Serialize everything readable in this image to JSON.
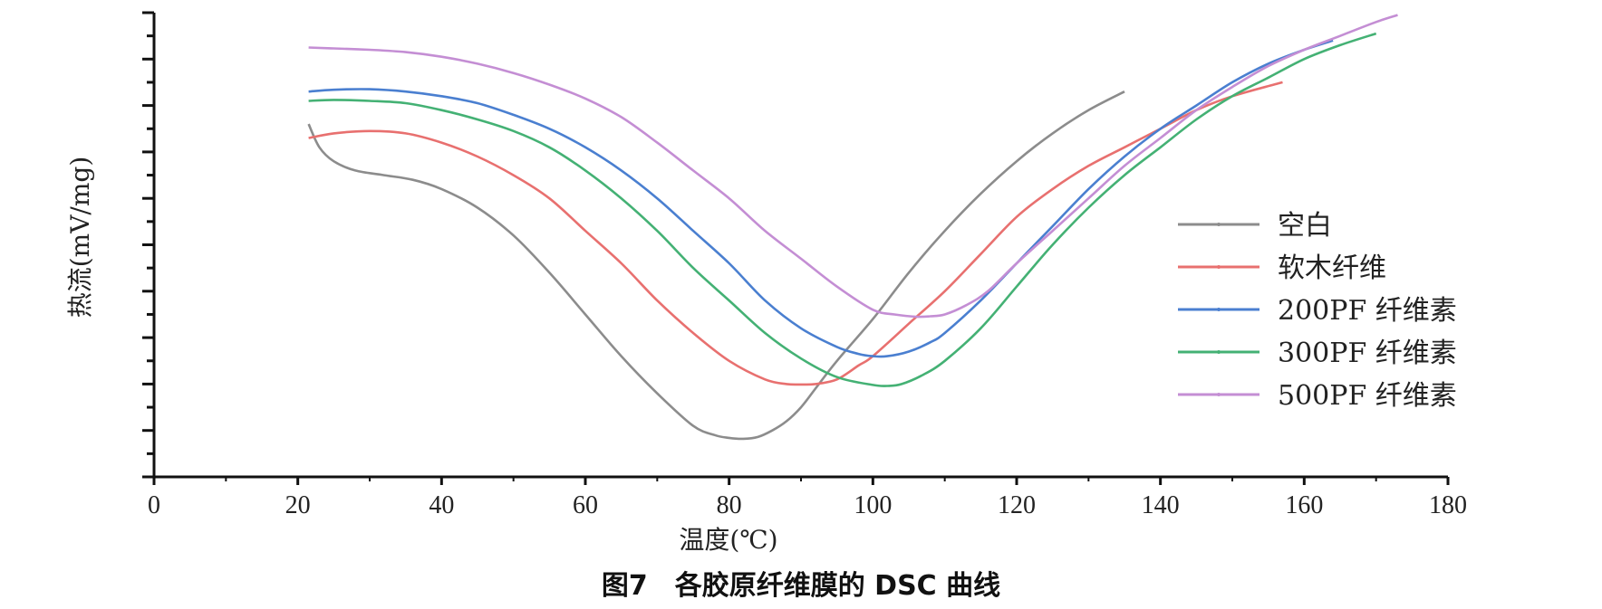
{
  "caption": "图7　各胶原纤维膜的 DSC 曲线",
  "chart_data": {
    "type": "line",
    "xlabel": "温度(℃)",
    "ylabel": "热流(mV/mg)",
    "xlim": [
      0,
      180
    ],
    "ylim": [
      0,
      100
    ],
    "xticks": [
      "0",
      "20",
      "40",
      "60",
      "80",
      "100",
      "120",
      "140",
      "160",
      "180"
    ],
    "y_tick_labels_shown": false,
    "grid": false,
    "legend_position": "right",
    "series": [
      {
        "name": "空白",
        "color": "#8c8c8c",
        "x": [
          21.5,
          23,
          25,
          28,
          32,
          36,
          40,
          45,
          50,
          55,
          60,
          65,
          70,
          75,
          78,
          80,
          82,
          84,
          86,
          88,
          90,
          92,
          95,
          100,
          105,
          110,
          115,
          120,
          125,
          130,
          135
        ],
        "y": [
          76,
          71,
          68,
          66,
          65,
          64,
          62,
          58,
          52,
          44,
          35,
          26,
          18,
          11,
          9,
          8.4,
          8.2,
          8.6,
          10,
          12,
          15,
          19,
          25,
          34,
          44,
          53,
          61,
          68,
          74,
          79,
          83
        ]
      },
      {
        "name": "软木纤维",
        "color": "#e8706f",
        "x": [
          21.5,
          25,
          30,
          35,
          40,
          45,
          50,
          55,
          60,
          65,
          70,
          75,
          80,
          85,
          88,
          90,
          92,
          95,
          98,
          100,
          105,
          110,
          115,
          120,
          125,
          130,
          135,
          140,
          145,
          150,
          157
        ],
        "y": [
          73,
          74,
          74.5,
          74,
          72,
          69,
          65,
          60,
          53,
          46,
          38,
          31,
          25,
          21,
          20,
          19.9,
          20,
          21,
          24,
          26,
          33,
          40,
          48,
          56,
          62,
          67,
          71,
          75,
          79,
          82,
          85
        ]
      },
      {
        "name": "200PF 纤维素",
        "color": "#4a7fd0",
        "x": [
          21.5,
          25,
          30,
          35,
          40,
          45,
          50,
          55,
          60,
          65,
          70,
          75,
          80,
          85,
          90,
          95,
          98,
          100,
          102,
          105,
          108,
          110,
          115,
          120,
          125,
          130,
          135,
          140,
          145,
          150,
          155,
          160,
          164
        ],
        "y": [
          83,
          83.4,
          83.5,
          83,
          82,
          80.5,
          78,
          75,
          71,
          66,
          60,
          53,
          46,
          38,
          32,
          28,
          26.5,
          26,
          26,
          27,
          29,
          31,
          38,
          46,
          54,
          62,
          69,
          75,
          80,
          85,
          89,
          92,
          94
        ]
      },
      {
        "name": "300PF 纤维素",
        "color": "#44b174",
        "x": [
          21.5,
          25,
          30,
          35,
          40,
          45,
          50,
          55,
          60,
          65,
          70,
          75,
          80,
          85,
          90,
          95,
          100,
          102,
          104,
          107,
          110,
          115,
          120,
          125,
          130,
          135,
          140,
          145,
          150,
          155,
          160,
          165,
          170
        ],
        "y": [
          81,
          81.2,
          81,
          80.5,
          79,
          77,
          74.5,
          71,
          66,
          60,
          53,
          45,
          38,
          31,
          25.5,
          21.5,
          19.8,
          19.6,
          20,
          22,
          25,
          32,
          41,
          50,
          58,
          65,
          71,
          77,
          82,
          86,
          90,
          93,
          95.5
        ]
      },
      {
        "name": "500PF 纤维素",
        "color": "#c48ed4",
        "x": [
          21.5,
          25,
          30,
          35,
          40,
          45,
          50,
          55,
          60,
          65,
          70,
          75,
          80,
          85,
          90,
          95,
          100,
          103,
          106,
          108,
          110,
          113,
          116,
          120,
          125,
          130,
          135,
          140,
          145,
          150,
          155,
          160,
          165,
          170,
          173
        ],
        "y": [
          92.5,
          92.3,
          92,
          91.5,
          90.5,
          89,
          87,
          84.5,
          81.5,
          77.5,
          72,
          66,
          60,
          53,
          47,
          41,
          36,
          35,
          34.5,
          34.6,
          35,
          37,
          40,
          46,
          53,
          60,
          67,
          73,
          79,
          84,
          88.5,
          92,
          95,
          98,
          99.5
        ]
      }
    ]
  }
}
